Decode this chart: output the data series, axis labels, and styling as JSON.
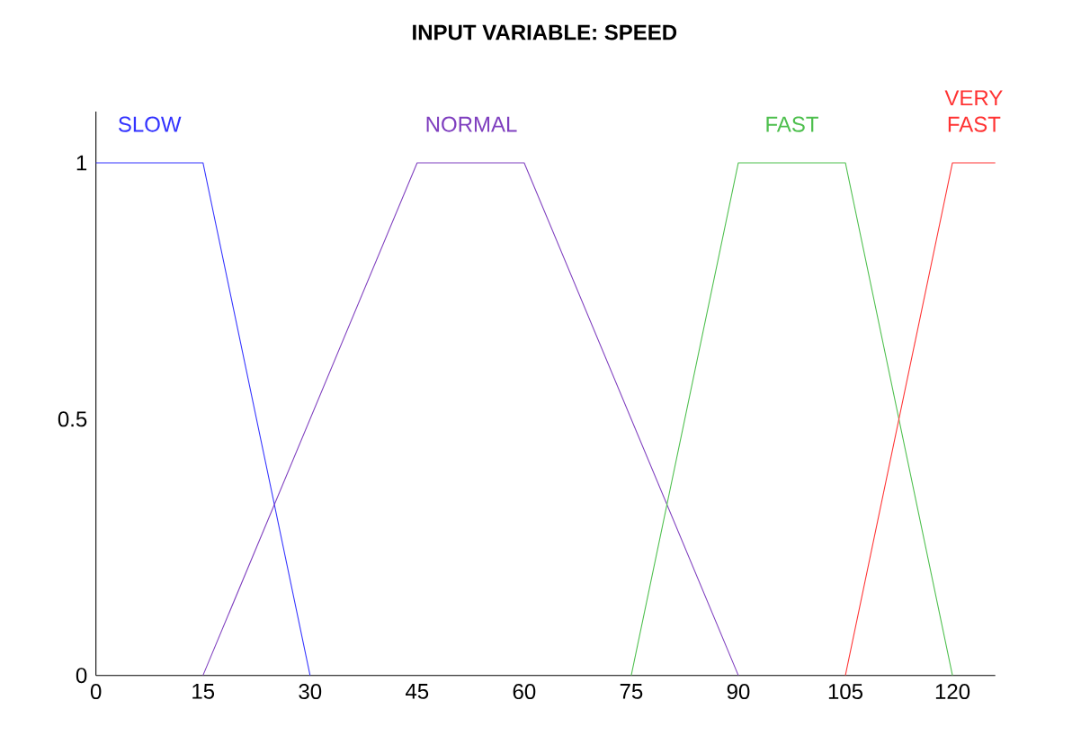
{
  "chart_data": {
    "type": "line",
    "title": "INPUT VARIABLE: SPEED",
    "xlim": [
      0,
      126
    ],
    "ylim": [
      0,
      1.1
    ],
    "xticks": [
      0,
      15,
      30,
      45,
      60,
      75,
      90,
      105,
      120
    ],
    "yticks": [
      0,
      {
        "value": 0.5,
        "label": "0.5"
      },
      1
    ],
    "grid": false,
    "legend": false,
    "marker": "none",
    "line_style": "solid",
    "series": [
      {
        "name": "SLOW",
        "color": "#3333ff",
        "x": [
          0,
          15,
          30
        ],
        "values": [
          1,
          1,
          0
        ]
      },
      {
        "name": "NORMAL",
        "color": "#7f3fbf",
        "x": [
          15,
          45,
          60,
          90
        ],
        "values": [
          0,
          1,
          1,
          0
        ]
      },
      {
        "name": "FAST",
        "color": "#4dbf4d",
        "x": [
          75,
          90,
          105,
          120
        ],
        "values": [
          0,
          1,
          1,
          0
        ]
      },
      {
        "name": "VERY FAST",
        "color": "#ff3333",
        "x": [
          105,
          120,
          126
        ],
        "values": [
          0,
          1,
          1
        ]
      }
    ]
  }
}
